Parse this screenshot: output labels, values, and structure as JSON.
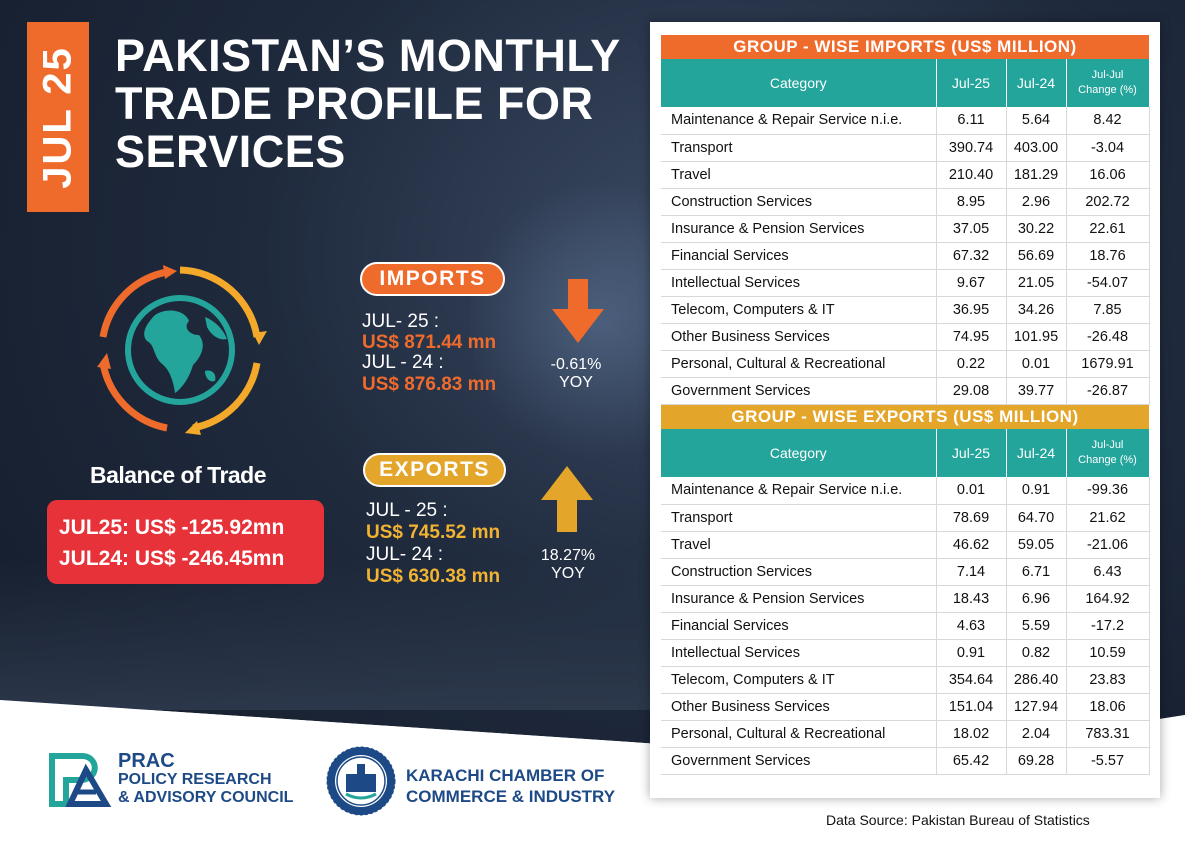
{
  "month_tab": "JUL 25",
  "title": "PAKISTAN’S MONTHLY TRADE PROFILE FOR SERVICES",
  "balance_of_trade": {
    "title": "Balance of Trade",
    "line1": "JUL25:  US$ -125.92mn",
    "line2": "JUL24:  US$ -246.45mn"
  },
  "imports": {
    "label": "IMPORTS",
    "cur_label": "JUL- 25 :",
    "cur_value": "US$ 871.44 mn",
    "prev_label": "JUL - 24 :",
    "prev_value": "US$ 876.83 mn",
    "change": "-0.61%",
    "change_unit": "YOY",
    "direction": "down",
    "color": "#ef6b2c"
  },
  "exports": {
    "label": "EXPORTS",
    "cur_label": "JUL - 25 :",
    "cur_value": "US$ 745.52 mn",
    "prev_label": "JUL- 24 :",
    "prev_value": "US$ 630.38 mn",
    "change": "18.27%",
    "change_unit": "YOY",
    "direction": "up",
    "color": "#e3a52a"
  },
  "imports_table": {
    "heading": "GROUP - WISE IMPORTS (US$ MILLION)",
    "columns": [
      "Category",
      "Jul-25",
      "Jul-24",
      "Jul-Jul",
      "Change (%)"
    ],
    "rows": [
      [
        "Maintenance & Repair Service n.i.e.",
        "6.11",
        "5.64",
        "8.42"
      ],
      [
        "Transport",
        "390.74",
        "403.00",
        "-3.04"
      ],
      [
        "Travel",
        "210.40",
        "181.29",
        "16.06"
      ],
      [
        "Construction Services",
        "8.95",
        "2.96",
        "202.72"
      ],
      [
        "Insurance & Pension Services",
        "37.05",
        "30.22",
        "22.61"
      ],
      [
        "Financial Services",
        "67.32",
        "56.69",
        "18.76"
      ],
      [
        "Intellectual Services",
        "9.67",
        "21.05",
        "-54.07"
      ],
      [
        "Telecom, Computers & IT",
        "36.95",
        "34.26",
        "7.85"
      ],
      [
        "Other Business Services",
        "74.95",
        "101.95",
        "-26.48"
      ],
      [
        "Personal, Cultural & Recreational",
        "0.22",
        "0.01",
        "1679.91"
      ],
      [
        "Government Services",
        "29.08",
        "39.77",
        "-26.87"
      ]
    ]
  },
  "exports_table": {
    "heading": "GROUP - WISE EXPORTS (US$ MILLION)",
    "columns": [
      "Category",
      "Jul-25",
      "Jul-24",
      "Jul-Jul",
      "Change (%)"
    ],
    "rows": [
      [
        "Maintenance & Repair Service n.i.e.",
        "0.01",
        "0.91",
        "-99.36"
      ],
      [
        "Transport",
        "78.69",
        "64.70",
        "21.62"
      ],
      [
        "Travel",
        "46.62",
        "59.05",
        "-21.06"
      ],
      [
        "Construction Services",
        "7.14",
        "6.71",
        "6.43"
      ],
      [
        "Insurance & Pension Services",
        "18.43",
        "6.96",
        "164.92"
      ],
      [
        "Financial Services",
        "4.63",
        "5.59",
        "-17.2"
      ],
      [
        "Intellectual Services",
        "0.91",
        "0.82",
        "10.59"
      ],
      [
        "Telecom, Computers & IT",
        "354.64",
        "286.40",
        "23.83"
      ],
      [
        "Other Business Services",
        "151.04",
        "127.94",
        "18.06"
      ],
      [
        "Personal, Cultural & Recreational",
        "18.02",
        "2.04",
        "783.31"
      ],
      [
        "Government Services",
        "65.42",
        "69.28",
        "-5.57"
      ]
    ]
  },
  "source": "Data Source: Pakistan Bureau of Statistics",
  "logos": {
    "prac_title": "PRAC",
    "prac_line1": "POLICY RESEARCH",
    "prac_line2": "& ADVISORY COUNCIL",
    "kcci_line1": "KARACHI CHAMBER OF",
    "kcci_line2": "COMMERCE & INDUSTRY"
  },
  "colors": {
    "orange": "#ef6b2c",
    "gold": "#e3a52a",
    "teal": "#24a59c",
    "red": "#e8323a",
    "navy": "#1d4a86"
  }
}
